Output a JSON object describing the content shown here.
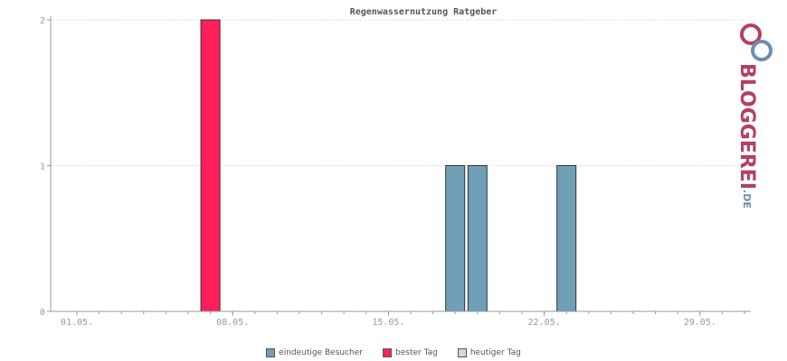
{
  "chart_data": {
    "type": "bar",
    "title": "Regenwassernutzung Ratgeber",
    "xlabel": "",
    "ylabel": "",
    "ylim": [
      0,
      2
    ],
    "y_ticks": [
      "0",
      "1",
      "2"
    ],
    "x_ticks": [
      "01.05.",
      "08.05.",
      "15.05.",
      "22.05.",
      "29.05."
    ],
    "days": 31,
    "grid": true,
    "legend_position": "bottom",
    "series": [
      {
        "name": "eindeutige Besucher",
        "color": "#6fa0b8",
        "bars": [
          {
            "day": 18,
            "value": 1
          },
          {
            "day": 19,
            "value": 1
          },
          {
            "day": 23,
            "value": 1
          }
        ]
      },
      {
        "name": "bester Tag",
        "color": "#ff1f5a",
        "bars": [
          {
            "day": 7,
            "value": 2
          }
        ]
      },
      {
        "name": "heutiger Tag",
        "color": "#d6d6d6",
        "bars": []
      }
    ]
  },
  "legend": [
    {
      "label": "eindeutige Besucher",
      "color": "#6fa0b8"
    },
    {
      "label": "bester Tag",
      "color": "#ff1f5a"
    },
    {
      "label": "heutiger Tag",
      "color": "#d6d6d6"
    }
  ],
  "brand": {
    "name": "BLOGGEREI",
    "tld": ".DE",
    "logo": "bloggerei-logo-icon"
  }
}
